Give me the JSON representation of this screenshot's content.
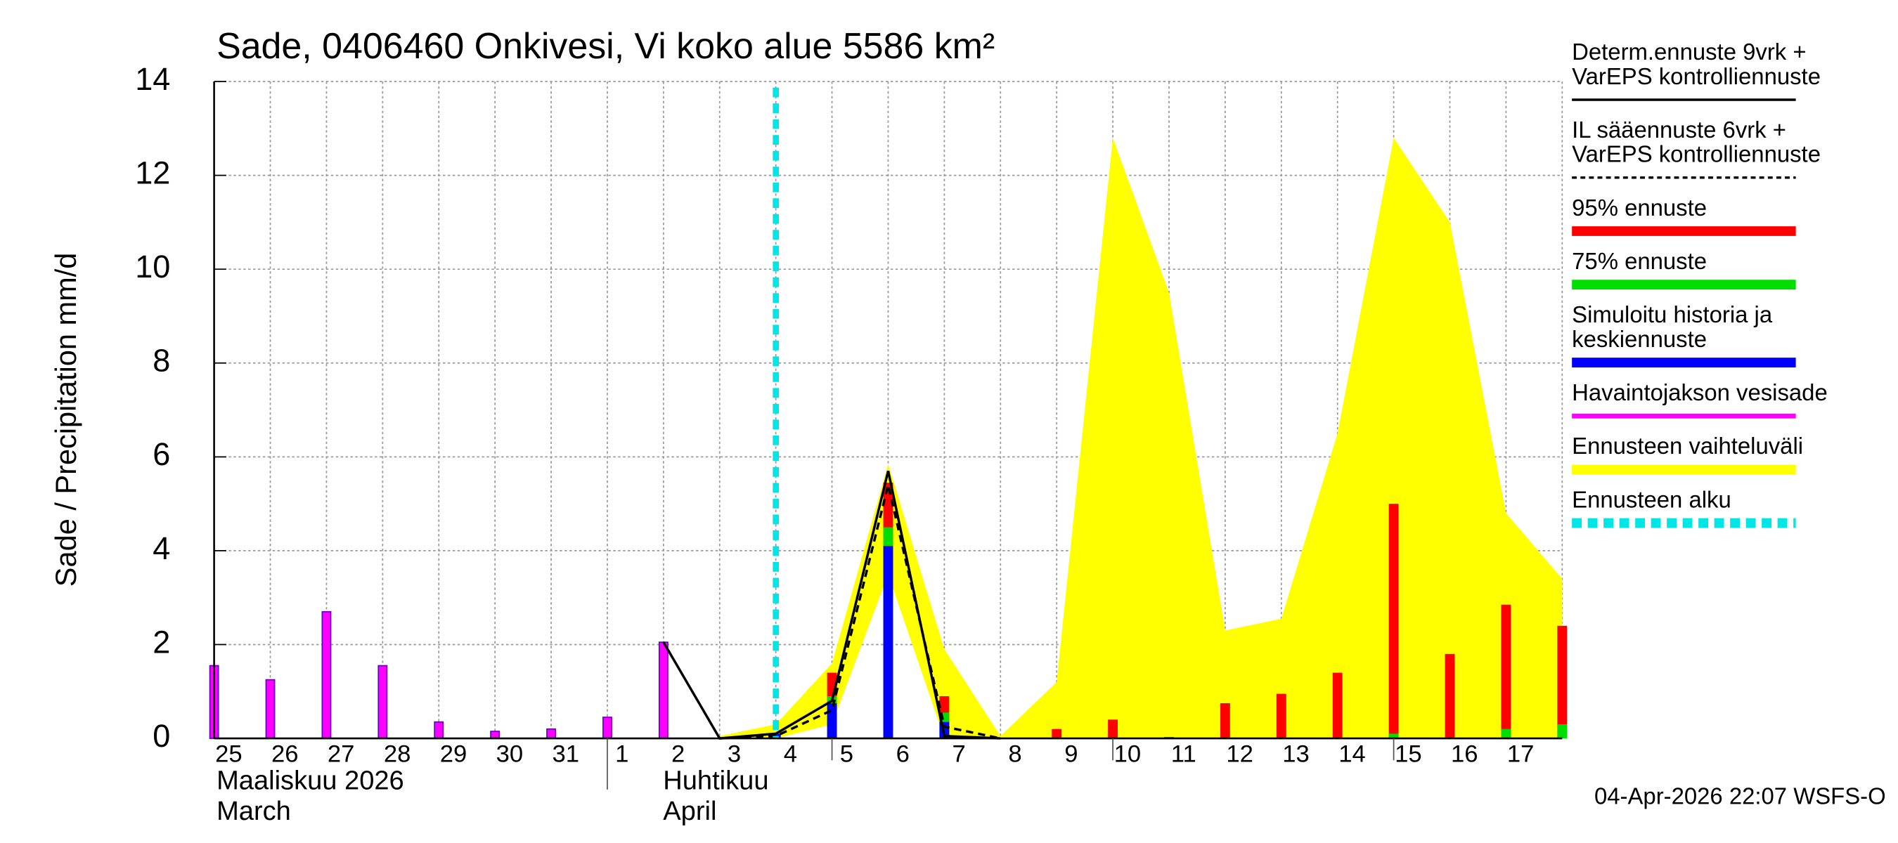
{
  "chart_data": {
    "type": "bar",
    "title": "Sade, 0406460 Onkivesi, Vi koko alue 5586 km²",
    "y_label": "Sade / Precipitation   mm/d",
    "footer": "04-Apr-2026 22:07 WSFS-O",
    "month_labels": [
      "Maaliskuu 2026",
      "March",
      "Huhtikuu",
      "April"
    ],
    "categories": [
      "25",
      "26",
      "27",
      "28",
      "29",
      "30",
      "31",
      "1",
      "2",
      "3",
      "4",
      "5",
      "6",
      "7",
      "8",
      "9",
      "10",
      "11",
      "12",
      "13",
      "14",
      "15",
      "16",
      "17",
      null
    ],
    "ylim": [
      0,
      14
    ],
    "yticks": [
      0,
      2,
      4,
      6,
      8,
      10,
      12,
      14
    ],
    "grid": true,
    "series": [
      {
        "name": "Determ.ennuste 9vrk +\nVarEPS kontrolliennuste",
        "type": "line",
        "color": "#000000",
        "values": [
          null,
          null,
          null,
          null,
          null,
          null,
          null,
          null,
          2.05,
          0,
          0.1,
          0.8,
          5.7,
          0.05,
          0,
          null,
          null,
          null,
          null,
          null,
          null,
          null,
          null,
          null,
          null
        ]
      },
      {
        "name": "IL sääennuste 6vrk  +\nVarEPS kontrolliennuste",
        "type": "line",
        "dashed": true,
        "color": "#000000",
        "values": [
          null,
          null,
          null,
          null,
          null,
          null,
          null,
          null,
          null,
          0,
          0.05,
          0.6,
          5.4,
          0.25,
          0,
          null,
          null,
          null,
          null,
          null,
          null,
          null,
          null,
          null,
          null
        ]
      },
      {
        "name": "95% ennuste",
        "type": "bar",
        "color": "#ff0000",
        "values": [
          null,
          null,
          null,
          null,
          null,
          null,
          null,
          null,
          null,
          null,
          null,
          1.4,
          5.45,
          0.9,
          null,
          0.2,
          0.4,
          0.03,
          0.75,
          0.95,
          1.4,
          5.0,
          1.8,
          2.85,
          2.4
        ]
      },
      {
        "name": "75% ennuste",
        "type": "bar",
        "color": "#00dd00",
        "values": [
          null,
          null,
          null,
          null,
          null,
          null,
          null,
          null,
          null,
          null,
          null,
          0.9,
          4.5,
          0.55,
          null,
          null,
          null,
          null,
          null,
          null,
          null,
          0.1,
          null,
          0.2,
          0.3
        ]
      },
      {
        "name": "Simuloitu historia ja\nkeskiennuste",
        "type": "bar",
        "color": "#0000ff",
        "values": [
          null,
          null,
          null,
          null,
          null,
          null,
          null,
          null,
          null,
          null,
          0.1,
          0.75,
          4.1,
          0.35,
          null,
          null,
          null,
          null,
          null,
          null,
          null,
          null,
          null,
          null,
          null
        ]
      },
      {
        "name": "Havaintojakson vesisade",
        "type": "bar",
        "color": "#ff00ff",
        "values": [
          1.55,
          1.25,
          2.7,
          1.55,
          0.35,
          0.15,
          0.2,
          0.45,
          2.05,
          null,
          null,
          null,
          null,
          null,
          null,
          null,
          null,
          null,
          null,
          null,
          null,
          null,
          null,
          null,
          null
        ]
      },
      {
        "name": "Ennusteen vaihteluväli",
        "type": "area",
        "color": "#ffff00",
        "values": [
          null,
          null,
          null,
          null,
          null,
          null,
          null,
          null,
          null,
          0.05,
          0.3,
          1.6,
          5.85,
          1.9,
          0.05,
          1.2,
          12.8,
          9.5,
          2.3,
          2.55,
          6.5,
          12.8,
          11.0,
          4.8,
          3.4
        ],
        "lower": [
          null,
          null,
          null,
          null,
          null,
          null,
          null,
          null,
          null,
          0,
          0,
          0.3,
          3.5,
          0,
          0,
          0,
          0,
          0,
          0,
          0,
          0,
          0,
          0,
          0,
          0
        ]
      },
      {
        "name": "Ennusteen alku",
        "type": "vline",
        "color": "#00e5e5",
        "x": "4"
      }
    ]
  }
}
